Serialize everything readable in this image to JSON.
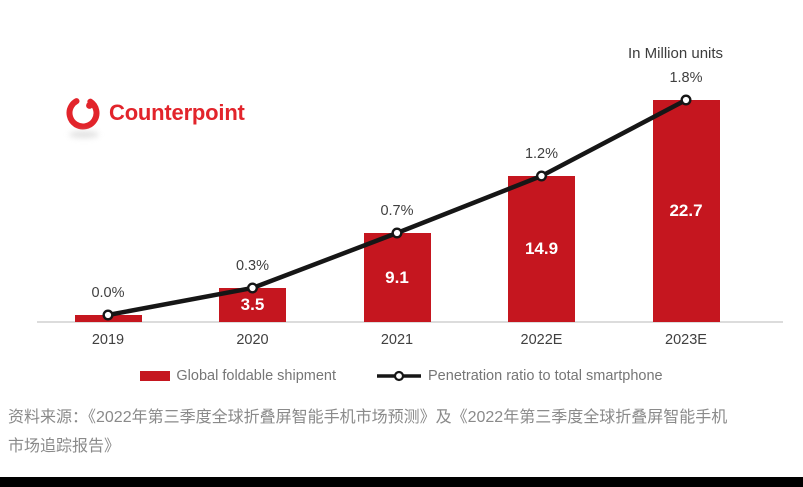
{
  "brand": {
    "name": "Counterpoint",
    "color": "#e2242b"
  },
  "chart": {
    "units_label": "In Million units"
  },
  "chart_data": {
    "type": "bar",
    "categories": [
      "2019",
      "2020",
      "2021",
      "2022E",
      "2023E"
    ],
    "series": [
      {
        "name": "Global foldable shipment",
        "type": "bar",
        "values": [
          0.7,
          3.5,
          9.1,
          14.9,
          22.7
        ],
        "value_labels": [
          "",
          "3.5",
          "9.1",
          "14.9",
          "22.7"
        ],
        "color": "#c5161f"
      },
      {
        "name": "Penetration ratio to total smartphone",
        "type": "line",
        "values": [
          0.0,
          0.3,
          0.7,
          1.2,
          1.8
        ],
        "value_labels": [
          "0.0%",
          "0.3%",
          "0.7%",
          "1.2%",
          "1.8%"
        ],
        "color": "#161616"
      }
    ],
    "title": "",
    "xlabel": "",
    "ylabel": "In Million units",
    "ylim": [
      0,
      22.7
    ],
    "grid": false,
    "legend_position": "bottom"
  },
  "source": {
    "line1": "资料来源：《2022年第三季度全球折叠屏智能手机市场预测》及《2022年第三季度全球折叠屏智能手机",
    "line2": "市场追踪报告》"
  }
}
